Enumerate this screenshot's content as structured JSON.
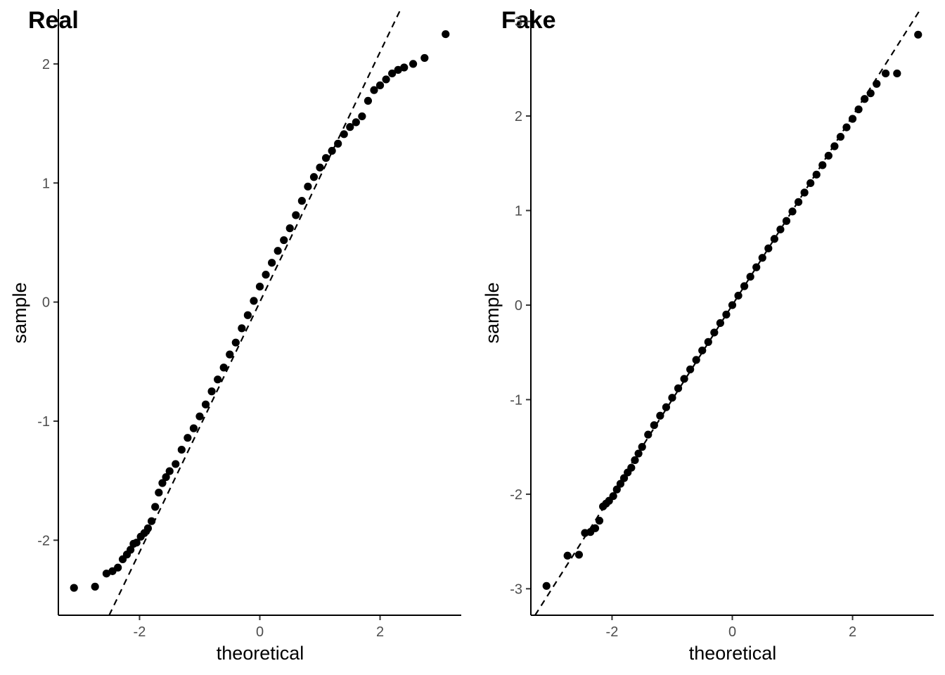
{
  "chart_data": [
    {
      "type": "scatter",
      "title": "Real",
      "xlabel": "theoretical",
      "ylabel": "sample",
      "xlim": [
        -3.35,
        3.35
      ],
      "ylim": [
        -2.63,
        2.46
      ],
      "xticks": [
        -2,
        0,
        2
      ],
      "xtick_labels": [
        "-2",
        "0",
        "2"
      ],
      "yticks": [
        -2,
        -1,
        0,
        1,
        2
      ],
      "ytick_labels": [
        "-2",
        "-1",
        "0",
        "1",
        "2"
      ],
      "grid": false,
      "reference_line": {
        "intercept": 0.0,
        "slope": 1.05
      },
      "points": {
        "theoretical": [
          -3.09,
          -2.74,
          -2.55,
          -2.45,
          -2.36,
          -2.28,
          -2.21,
          -2.15,
          -2.1,
          -2.05,
          -1.98,
          -1.92,
          -1.86,
          -1.8,
          -1.74,
          -1.68,
          -1.62,
          -1.56,
          -1.5,
          -1.4,
          -1.3,
          -1.2,
          -1.1,
          -1.0,
          -0.9,
          -0.8,
          -0.7,
          -0.6,
          -0.5,
          -0.4,
          -0.3,
          -0.2,
          -0.1,
          0.0,
          0.1,
          0.2,
          0.3,
          0.4,
          0.5,
          0.6,
          0.7,
          0.8,
          0.9,
          1.0,
          1.1,
          1.2,
          1.3,
          1.4,
          1.5,
          1.6,
          1.7,
          1.8,
          1.9,
          2.0,
          2.1,
          2.2,
          2.3,
          2.4,
          2.55,
          2.74,
          3.09
        ],
        "sample": [
          -2.4,
          -2.39,
          -2.28,
          -2.26,
          -2.23,
          -2.16,
          -2.12,
          -2.08,
          -2.03,
          -2.02,
          -1.97,
          -1.94,
          -1.9,
          -1.84,
          -1.72,
          -1.6,
          -1.52,
          -1.47,
          -1.42,
          -1.36,
          -1.24,
          -1.14,
          -1.06,
          -0.96,
          -0.86,
          -0.75,
          -0.65,
          -0.55,
          -0.44,
          -0.34,
          -0.22,
          -0.11,
          0.01,
          0.13,
          0.23,
          0.33,
          0.43,
          0.52,
          0.62,
          0.73,
          0.85,
          0.97,
          1.05,
          1.13,
          1.21,
          1.27,
          1.33,
          1.41,
          1.47,
          1.51,
          1.56,
          1.69,
          1.78,
          1.82,
          1.87,
          1.92,
          1.95,
          1.97,
          2.0,
          2.05,
          2.25
        ]
      }
    },
    {
      "type": "scatter",
      "title": "Fake",
      "xlabel": "theoretical",
      "ylabel": "sample",
      "xlim": [
        -3.35,
        3.35
      ],
      "ylim": [
        -3.28,
        3.13
      ],
      "xticks": [
        -2,
        0,
        2
      ],
      "xtick_labels": [
        "-2",
        "0",
        "2"
      ],
      "yticks": [
        -3,
        -2,
        -1,
        0,
        1,
        2,
        3
      ],
      "ytick_labels": [
        "-3",
        "-2",
        "-1",
        "0",
        "1",
        "2",
        "3"
      ],
      "grid": false,
      "reference_line": {
        "intercept": 0.0,
        "slope": 1.0
      },
      "points": {
        "theoretical": [
          -3.09,
          -2.74,
          -2.55,
          -2.45,
          -2.36,
          -2.28,
          -2.21,
          -2.15,
          -2.1,
          -2.05,
          -1.98,
          -1.92,
          -1.86,
          -1.8,
          -1.74,
          -1.68,
          -1.62,
          -1.56,
          -1.5,
          -1.4,
          -1.3,
          -1.2,
          -1.1,
          -1.0,
          -0.9,
          -0.8,
          -0.7,
          -0.6,
          -0.5,
          -0.4,
          -0.3,
          -0.2,
          -0.1,
          0.0,
          0.1,
          0.2,
          0.3,
          0.4,
          0.5,
          0.6,
          0.7,
          0.8,
          0.9,
          1.0,
          1.1,
          1.2,
          1.3,
          1.4,
          1.5,
          1.6,
          1.7,
          1.8,
          1.9,
          2.0,
          2.1,
          2.2,
          2.3,
          2.4,
          2.55,
          2.74,
          3.09
        ],
        "sample": [
          -2.97,
          -2.65,
          -2.64,
          -2.41,
          -2.4,
          -2.36,
          -2.28,
          -2.13,
          -2.1,
          -2.07,
          -2.02,
          -1.95,
          -1.89,
          -1.83,
          -1.77,
          -1.72,
          -1.64,
          -1.57,
          -1.5,
          -1.37,
          -1.27,
          -1.17,
          -1.08,
          -0.98,
          -0.88,
          -0.78,
          -0.68,
          -0.58,
          -0.48,
          -0.39,
          -0.29,
          -0.19,
          -0.1,
          0.0,
          0.1,
          0.2,
          0.3,
          0.4,
          0.5,
          0.6,
          0.7,
          0.8,
          0.89,
          0.99,
          1.09,
          1.19,
          1.29,
          1.38,
          1.48,
          1.58,
          1.68,
          1.78,
          1.88,
          1.97,
          2.07,
          2.18,
          2.24,
          2.34,
          2.45,
          2.45,
          2.86
        ]
      }
    }
  ]
}
